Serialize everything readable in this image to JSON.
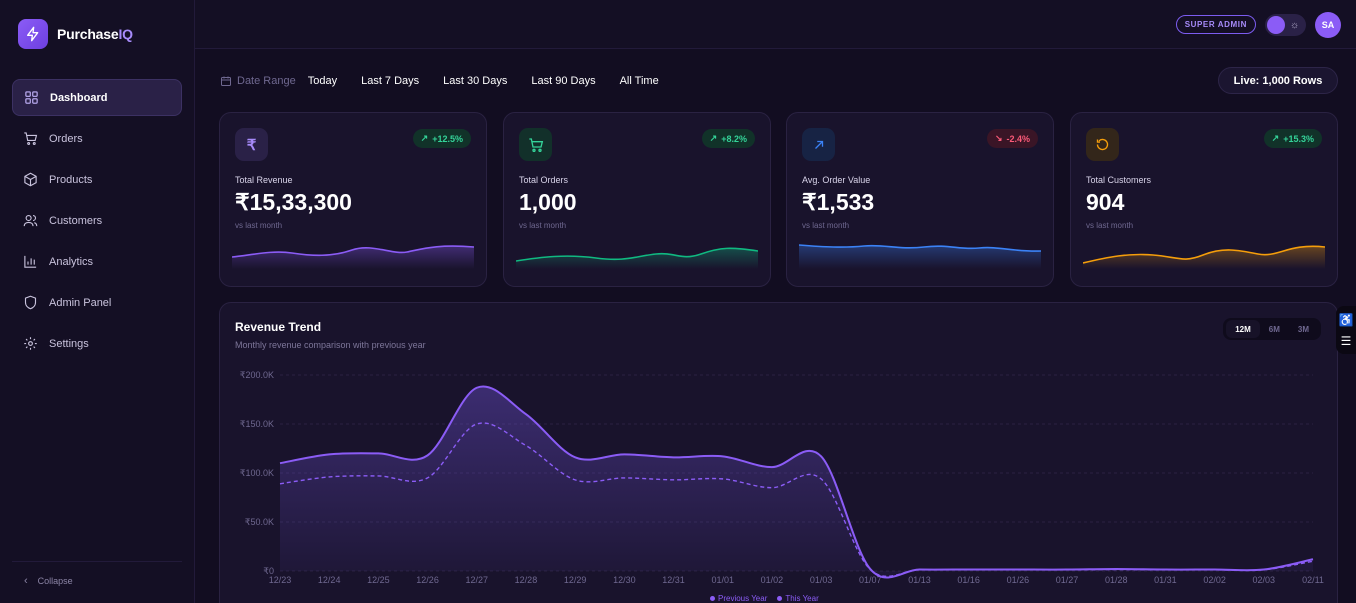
{
  "brand": {
    "name_main": "Purchase",
    "name_accent": "IQ"
  },
  "sidebar": {
    "items": [
      {
        "label": "Dashboard",
        "icon": "dashboard-icon",
        "active": true
      },
      {
        "label": "Orders",
        "icon": "cart-icon"
      },
      {
        "label": "Products",
        "icon": "box-icon"
      },
      {
        "label": "Customers",
        "icon": "users-icon"
      },
      {
        "label": "Analytics",
        "icon": "bar-chart-icon"
      },
      {
        "label": "Admin Panel",
        "icon": "shield-icon"
      },
      {
        "label": "Settings",
        "icon": "gear-icon"
      }
    ],
    "collapse_label": "Collapse"
  },
  "topbar": {
    "role_badge": "SUPER ADMIN",
    "avatar_initials": "SA"
  },
  "filters": {
    "label": "Date Range",
    "options": [
      "Today",
      "Last 7 Days",
      "Last 30 Days",
      "Last 90 Days",
      "All Time"
    ],
    "live_chip": "Live: 1,000 Rows"
  },
  "kpis": [
    {
      "label": "Total Revenue",
      "value": "₹15,33,300",
      "sub": "vs last month",
      "change": "+12.5%",
      "trend": "up",
      "icon": "rupee-icon",
      "color": "#8b5cf6"
    },
    {
      "label": "Total Orders",
      "value": "1,000",
      "sub": "vs last month",
      "change": "+8.2%",
      "trend": "up",
      "icon": "cart-icon",
      "color": "#10b981"
    },
    {
      "label": "Avg. Order Value",
      "value": "₹1,533",
      "sub": "vs last month",
      "change": "-2.4%",
      "trend": "down",
      "icon": "arrow-up-right-icon",
      "color": "#3b82f6"
    },
    {
      "label": "Total Customers",
      "value": "904",
      "sub": "vs last month",
      "change": "+15.3%",
      "trend": "up",
      "icon": "refresh-icon",
      "color": "#f59e0b"
    }
  ],
  "revenue_trend": {
    "title": "Revenue Trend",
    "subtitle": "Monthly revenue comparison with previous year",
    "ranges": [
      "12M",
      "6M",
      "3M"
    ],
    "active_range": "12M",
    "legend": [
      "Previous Year",
      "This Year"
    ]
  },
  "chart_data": {
    "type": "area",
    "categories": [
      "12/23",
      "12/24",
      "12/25",
      "12/26",
      "12/27",
      "12/28",
      "12/29",
      "12/30",
      "12/31",
      "01/01",
      "01/02",
      "01/03",
      "01/07",
      "01/13",
      "01/16",
      "01/26",
      "01/27",
      "01/28",
      "01/31",
      "02/02",
      "02/03",
      "02/11"
    ],
    "series": [
      {
        "name": "This Year",
        "values": [
          110000,
          119000,
          120000,
          118000,
          187000,
          160000,
          116000,
          119000,
          116000,
          117000,
          106000,
          117000,
          2000,
          1500,
          1500,
          1500,
          1500,
          2000,
          1500,
          1500,
          1500,
          12000
        ]
      },
      {
        "name": "Previous Year",
        "values": [
          89000,
          96000,
          97000,
          95000,
          150000,
          128000,
          93000,
          95000,
          93000,
          94000,
          85000,
          94000,
          1500,
          1200,
          1200,
          1200,
          1200,
          1500,
          1200,
          1200,
          1200,
          10000
        ]
      }
    ],
    "yticks": [
      "₹0",
      "₹50.0K",
      "₹100.0K",
      "₹150.0K",
      "₹200.0K"
    ],
    "ylim": [
      0,
      200000
    ],
    "grid": true,
    "legend_position": "bottom-center"
  }
}
